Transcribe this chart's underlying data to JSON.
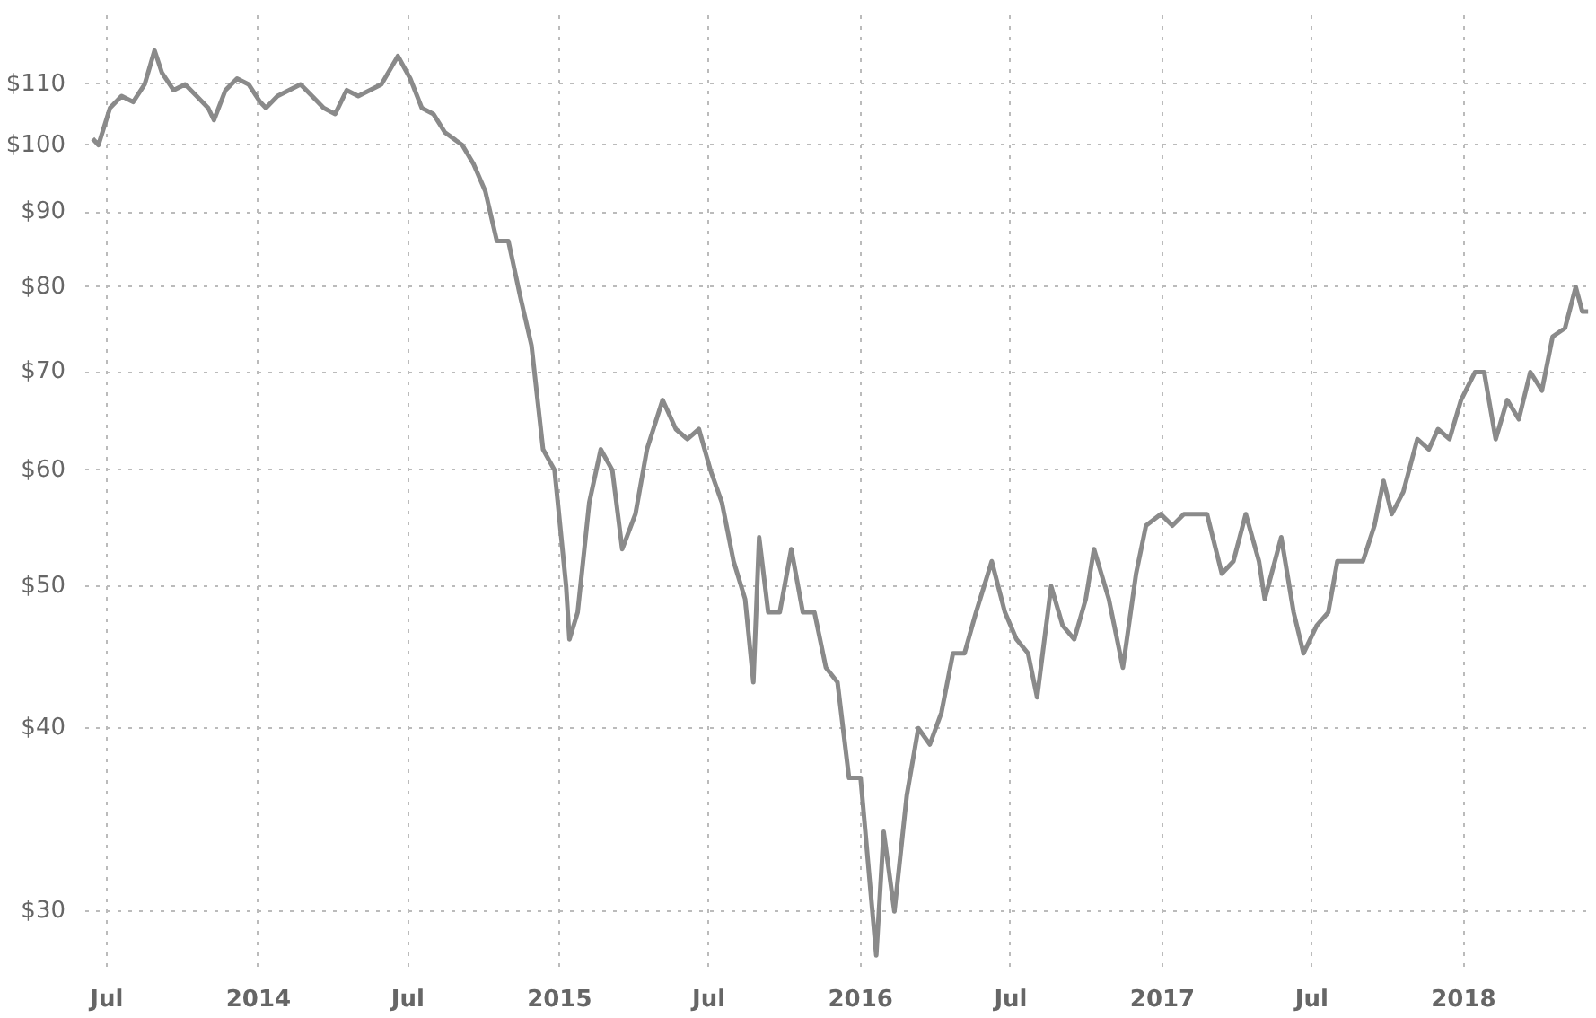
{
  "chart_data": {
    "type": "line",
    "x": [
      "2013-06-14",
      "2013-06-21",
      "2013-07-05",
      "2013-07-19",
      "2013-08-02",
      "2013-08-16",
      "2013-08-28",
      "2013-09-06",
      "2013-09-20",
      "2013-10-04",
      "2013-10-18",
      "2013-11-01",
      "2013-11-08",
      "2013-11-22",
      "2013-12-06",
      "2013-12-20",
      "2014-01-03",
      "2014-01-10",
      "2014-01-24",
      "2014-02-07",
      "2014-02-21",
      "2014-03-07",
      "2014-03-21",
      "2014-04-04",
      "2014-04-18",
      "2014-05-02",
      "2014-05-16",
      "2014-05-30",
      "2014-06-19",
      "2014-07-04",
      "2014-07-18",
      "2014-08-01",
      "2014-08-15",
      "2014-09-05",
      "2014-09-19",
      "2014-10-03",
      "2014-10-17",
      "2014-10-31",
      "2014-11-14",
      "2014-11-28",
      "2014-12-12",
      "2014-12-26",
      "2015-01-09",
      "2015-01-13",
      "2015-01-23",
      "2015-02-06",
      "2015-02-20",
      "2015-03-06",
      "2015-03-18",
      "2015-04-03",
      "2015-04-17",
      "2015-05-06",
      "2015-05-22",
      "2015-06-05",
      "2015-06-19",
      "2015-07-03",
      "2015-07-17",
      "2015-07-31",
      "2015-08-14",
      "2015-08-24",
      "2015-08-31",
      "2015-09-11",
      "2015-09-25",
      "2015-10-09",
      "2015-10-23",
      "2015-11-06",
      "2015-11-20",
      "2015-12-04",
      "2015-12-18",
      "2016-01-01",
      "2016-01-20",
      "2016-01-29",
      "2016-02-11",
      "2016-02-26",
      "2016-03-11",
      "2016-03-25",
      "2016-04-08",
      "2016-04-22",
      "2016-05-06",
      "2016-05-20",
      "2016-06-08",
      "2016-06-24",
      "2016-07-08",
      "2016-07-22",
      "2016-08-02",
      "2016-08-19",
      "2016-09-02",
      "2016-09-16",
      "2016-09-30",
      "2016-10-10",
      "2016-10-28",
      "2016-11-14",
      "2016-11-30",
      "2016-12-12",
      "2016-12-30",
      "2017-01-13",
      "2017-01-27",
      "2017-02-10",
      "2017-02-24",
      "2017-03-14",
      "2017-03-28",
      "2017-04-12",
      "2017-04-28",
      "2017-05-05",
      "2017-05-25",
      "2017-06-09",
      "2017-06-21",
      "2017-07-07",
      "2017-07-21",
      "2017-08-01",
      "2017-08-18",
      "2017-09-01",
      "2017-09-15",
      "2017-09-26",
      "2017-10-06",
      "2017-10-20",
      "2017-11-06",
      "2017-11-20",
      "2017-12-01",
      "2017-12-15",
      "2017-12-29",
      "2018-01-15",
      "2018-01-26",
      "2018-02-09",
      "2018-02-23",
      "2018-03-09",
      "2018-03-23",
      "2018-04-06",
      "2018-04-19",
      "2018-05-04",
      "2018-05-17",
      "2018-05-25",
      "2018-06-01"
    ],
    "series": [
      {
        "color": "#8a8a8a",
        "values": [
          101,
          100,
          106,
          108,
          107,
          110,
          116,
          112,
          109,
          110,
          108,
          106,
          104,
          109,
          111,
          110,
          107,
          106,
          108,
          109,
          110,
          108,
          106,
          105,
          109,
          108,
          109,
          110,
          115,
          111,
          106,
          105,
          102,
          100,
          97,
          93,
          86,
          86,
          79,
          73,
          62,
          60,
          50,
          46,
          48,
          57,
          62,
          60,
          53,
          56,
          62,
          67,
          64,
          63,
          64,
          60,
          57,
          52,
          49,
          43,
          54,
          48,
          48,
          53,
          48,
          48,
          44,
          43,
          37,
          37,
          28,
          34,
          30,
          36,
          40,
          39,
          41,
          45,
          45,
          48,
          52,
          48,
          46,
          45,
          42,
          50,
          47,
          46,
          49,
          53,
          49,
          44,
          51,
          55,
          56,
          55,
          56,
          56,
          56,
          51,
          52,
          56,
          52,
          49,
          54,
          48,
          45,
          47,
          48,
          52,
          52,
          52,
          55,
          59,
          56,
          58,
          63,
          62,
          64,
          63,
          67,
          70,
          70,
          63,
          67,
          65,
          70,
          68,
          74,
          75,
          80,
          77,
          77
        ]
      }
    ],
    "xlim": [
      "2013-06-05",
      "2018-06-03"
    ],
    "xticks": [
      {
        "value": "2013-07-01",
        "label": "Jul"
      },
      {
        "value": "2014-01-01",
        "label": "2014"
      },
      {
        "value": "2014-07-01",
        "label": "Jul"
      },
      {
        "value": "2015-01-01",
        "label": "2015"
      },
      {
        "value": "2015-07-01",
        "label": "Jul"
      },
      {
        "value": "2016-01-01",
        "label": "2016"
      },
      {
        "value": "2016-07-01",
        "label": "Jul"
      },
      {
        "value": "2017-01-01",
        "label": "2017"
      },
      {
        "value": "2017-07-01",
        "label": "Jul"
      },
      {
        "value": "2018-01-01",
        "label": "2018"
      }
    ],
    "ylim": [
      27.5,
      124
    ],
    "yticks": [
      {
        "value": 30,
        "label": "$30"
      },
      {
        "value": 40,
        "label": "$40"
      },
      {
        "value": 50,
        "label": "$50"
      },
      {
        "value": 60,
        "label": "$60"
      },
      {
        "value": 70,
        "label": "$70"
      },
      {
        "value": 80,
        "label": "$80"
      },
      {
        "value": 90,
        "label": "$90"
      },
      {
        "value": 100,
        "label": "$100"
      },
      {
        "value": 110,
        "label": "$110"
      }
    ],
    "log": "y",
    "grid": true,
    "marker": "none",
    "line_style": "solid"
  }
}
